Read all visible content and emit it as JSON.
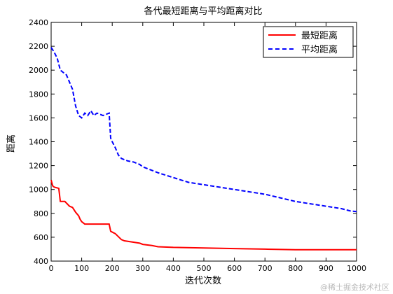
{
  "chart_data": {
    "type": "line",
    "title": "各代最短距离与平均距离对比",
    "xlabel": "迭代次数",
    "ylabel": "距离",
    "xlim": [
      0,
      1000
    ],
    "ylim": [
      400,
      2400
    ],
    "xticks": [
      0,
      100,
      200,
      300,
      400,
      500,
      600,
      700,
      800,
      900,
      1000
    ],
    "yticks": [
      400,
      600,
      800,
      1000,
      1200,
      1400,
      1600,
      1800,
      2000,
      2200,
      2400
    ],
    "legend_position": "top-right",
    "series": [
      {
        "name": "最短距离",
        "color": "#ff0000",
        "style": "solid",
        "x": [
          0,
          5,
          10,
          25,
          30,
          45,
          60,
          70,
          80,
          90,
          95,
          100,
          110,
          190,
          195,
          210,
          230,
          240,
          290,
          300,
          330,
          350,
          400,
          500,
          600,
          700,
          800,
          1000
        ],
        "y": [
          1080,
          1030,
          1020,
          1010,
          900,
          900,
          860,
          850,
          810,
          780,
          750,
          730,
          710,
          710,
          650,
          630,
          580,
          570,
          550,
          540,
          530,
          520,
          515,
          510,
          505,
          500,
          495,
          495
        ]
      },
      {
        "name": "平均距离",
        "color": "#0000ff",
        "style": "dashed",
        "x": [
          0,
          10,
          20,
          30,
          40,
          50,
          60,
          70,
          80,
          90,
          100,
          110,
          120,
          130,
          140,
          150,
          160,
          170,
          180,
          190,
          195,
          200,
          210,
          220,
          230,
          250,
          270,
          290,
          300,
          320,
          350,
          400,
          450,
          500,
          550,
          600,
          650,
          700,
          750,
          800,
          850,
          900,
          950,
          980,
          1000
        ],
        "y": [
          2190,
          2150,
          2100,
          2000,
          1980,
          1960,
          1900,
          1840,
          1700,
          1620,
          1600,
          1640,
          1620,
          1660,
          1620,
          1640,
          1630,
          1620,
          1630,
          1640,
          1430,
          1400,
          1350,
          1290,
          1260,
          1240,
          1230,
          1210,
          1190,
          1170,
          1140,
          1100,
          1060,
          1040,
          1020,
          1000,
          980,
          960,
          930,
          900,
          880,
          860,
          840,
          820,
          815
        ]
      }
    ]
  },
  "watermark": "@稀土掘金技术社区"
}
